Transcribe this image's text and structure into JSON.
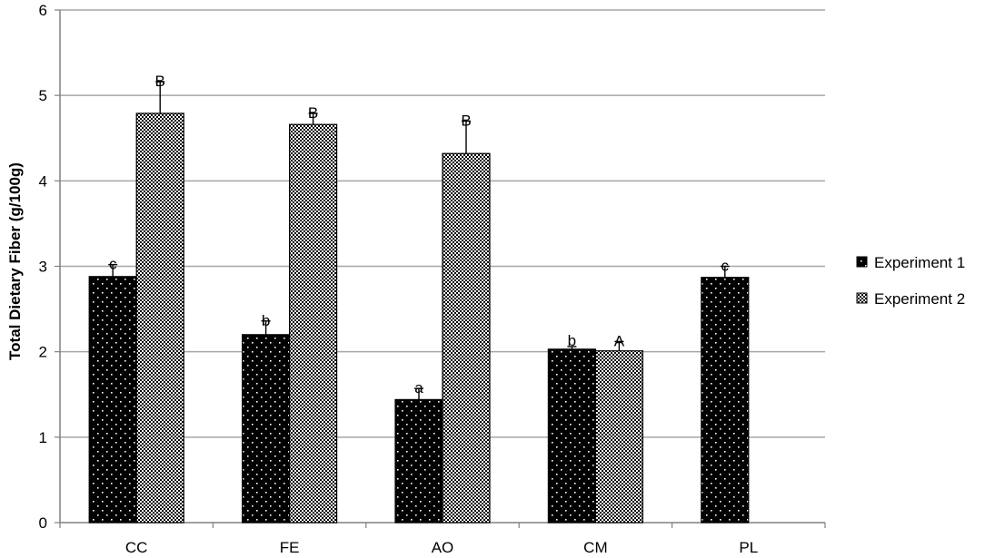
{
  "chart_data": {
    "type": "bar",
    "title": "",
    "xlabel": "",
    "ylabel": "Total Dietary Fiber (g/100g)",
    "ylim": [
      0,
      6
    ],
    "yticks": [
      "0",
      "1",
      "2",
      "3",
      "4",
      "5",
      "6"
    ],
    "categories": [
      "CC",
      "FE",
      "AO",
      "CM",
      "PL"
    ],
    "grid": "horizontal",
    "legend_position": "right",
    "series": [
      {
        "name": "Experiment 1",
        "color": "#000000",
        "pattern": "sparse-dots",
        "values": [
          2.88,
          2.2,
          1.44,
          2.03,
          2.87
        ],
        "errors": [
          0.14,
          0.16,
          0.13,
          0.03,
          0.13
        ],
        "letters": [
          "c",
          "b",
          "a",
          "b",
          "c"
        ]
      },
      {
        "name": "Experiment 2",
        "color": "#000000",
        "pattern": "dense-dots",
        "values": [
          4.79,
          4.66,
          4.32,
          2.01,
          null
        ],
        "errors": [
          0.37,
          0.13,
          0.38,
          0.11,
          null
        ],
        "letters": [
          "B",
          "B",
          "B",
          "A",
          null
        ]
      }
    ]
  }
}
